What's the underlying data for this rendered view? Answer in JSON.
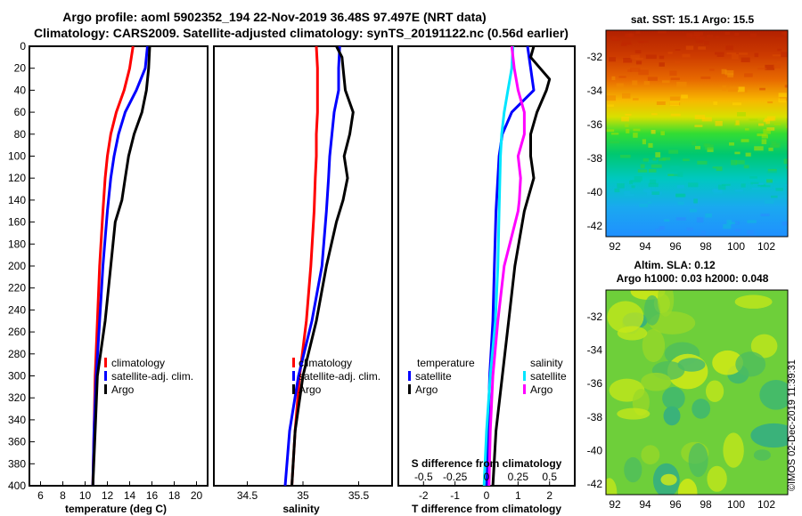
{
  "title": {
    "line1": "Argo profile: aoml 5902352_194 22-Nov-2019 36.48S 97.497E (NRT data)",
    "line2": "Climatology: CARS2009. Satellite-adjusted climatology: synTS_20191122.nc (0.56d earlier)"
  },
  "colors": {
    "climatology": "#ff0000",
    "satellite_adj": "#0000ff",
    "argo": "#000000",
    "sal_satellite": "#00e5ff",
    "sal_argo": "#ff00ff"
  },
  "chart_data": [
    {
      "type": "line",
      "id": "temperature",
      "xlabel": "temperature (deg C)",
      "ylabel": "",
      "xlim": [
        5,
        21
      ],
      "ylim": [
        400,
        0
      ],
      "xticks": [
        "6",
        "8",
        "10",
        "12",
        "14",
        "16",
        "18",
        "20"
      ],
      "yticks": [
        "0",
        "20",
        "40",
        "60",
        "80",
        "100",
        "120",
        "140",
        "160",
        "180",
        "200",
        "220",
        "240",
        "260",
        "280",
        "300",
        "320",
        "340",
        "360",
        "380",
        "400"
      ],
      "legend": [
        "climatology",
        "satellite-adj. clim.",
        "Argo"
      ],
      "series": [
        {
          "name": "climatology",
          "depth": [
            0,
            20,
            40,
            60,
            80,
            100,
            120,
            150,
            200,
            250,
            300,
            350,
            400
          ],
          "values": [
            14.3,
            14.0,
            13.5,
            12.8,
            12.3,
            12.0,
            11.8,
            11.6,
            11.3,
            11.1,
            10.9,
            10.8,
            10.7
          ]
        },
        {
          "name": "satellite-adj. clim.",
          "depth": [
            0,
            20,
            40,
            60,
            80,
            100,
            120,
            150,
            200,
            250,
            300,
            350,
            400
          ],
          "values": [
            15.6,
            15.4,
            14.6,
            13.6,
            13.0,
            12.6,
            12.3,
            12.0,
            11.6,
            11.3,
            11.0,
            10.8,
            10.7
          ]
        },
        {
          "name": "Argo",
          "depth": [
            0,
            20,
            40,
            60,
            80,
            100,
            120,
            140,
            160,
            200,
            250,
            300,
            350,
            400
          ],
          "values": [
            15.8,
            15.7,
            15.5,
            15.1,
            14.4,
            13.9,
            13.6,
            13.3,
            12.7,
            12.3,
            11.8,
            11.1,
            10.9,
            10.7
          ]
        }
      ]
    },
    {
      "type": "line",
      "id": "salinity",
      "xlabel": "salinity",
      "ylabel": "",
      "xlim": [
        34.2,
        35.8
      ],
      "ylim": [
        400,
        0
      ],
      "xticks": [
        "34.5",
        "35",
        "35.5"
      ],
      "legend": [
        "climatology",
        "satellite-adj. clim.",
        "Argo"
      ],
      "series": [
        {
          "name": "climatology",
          "depth": [
            0,
            20,
            40,
            60,
            80,
            100,
            120,
            150,
            200,
            250,
            300,
            350,
            400
          ],
          "values": [
            35.12,
            35.13,
            35.13,
            35.13,
            35.12,
            35.12,
            35.11,
            35.1,
            35.07,
            35.03,
            34.97,
            34.93,
            34.9
          ]
        },
        {
          "name": "satellite-adj. clim.",
          "depth": [
            0,
            20,
            40,
            60,
            80,
            100,
            120,
            150,
            200,
            250,
            300,
            350,
            400
          ],
          "values": [
            35.33,
            35.32,
            35.32,
            35.28,
            35.26,
            35.24,
            35.23,
            35.21,
            35.17,
            35.08,
            34.96,
            34.88,
            34.84
          ]
        },
        {
          "name": "Argo",
          "depth": [
            0,
            10,
            20,
            40,
            60,
            80,
            100,
            120,
            140,
            160,
            200,
            250,
            300,
            350,
            400
          ],
          "values": [
            35.3,
            35.35,
            35.36,
            35.38,
            35.45,
            35.42,
            35.37,
            35.4,
            35.36,
            35.3,
            35.21,
            35.12,
            35.0,
            34.93,
            34.9
          ]
        }
      ]
    },
    {
      "type": "line",
      "id": "difference",
      "xlabel": "T difference from climatology",
      "xlabel_top": "S difference from climatology",
      "xlim": [
        -2.8,
        2.8
      ],
      "ylim": [
        400,
        0
      ],
      "xticks": [
        "-2",
        "-1",
        "0",
        "1",
        "2"
      ],
      "xticks_top": [
        "-0.5",
        "-0.25",
        "0",
        "0.25",
        "0.5"
      ],
      "legend_temperature": {
        "title": "temperature",
        "items": [
          "satellite",
          "Argo"
        ]
      },
      "legend_salinity": {
        "title": "salinity",
        "items": [
          "satellite",
          "Argo"
        ]
      },
      "series": [
        {
          "name": "T satellite",
          "depth": [
            0,
            20,
            40,
            60,
            80,
            100,
            150,
            200,
            250,
            300,
            350,
            400
          ],
          "values": [
            1.3,
            1.4,
            1.5,
            0.8,
            0.5,
            0.4,
            0.3,
            0.25,
            0.2,
            0.1,
            0.05,
            0.0
          ]
        },
        {
          "name": "T Argo",
          "depth": [
            0,
            10,
            20,
            30,
            40,
            60,
            80,
            100,
            120,
            150,
            200,
            250,
            300,
            350,
            400
          ],
          "values": [
            1.5,
            1.4,
            1.7,
            2.0,
            1.9,
            1.6,
            1.4,
            1.4,
            1.5,
            1.2,
            0.9,
            0.7,
            0.5,
            0.3,
            0.2
          ]
        },
        {
          "name": "S satellite",
          "depth": [
            0,
            20,
            40,
            60,
            80,
            100,
            150,
            200,
            250,
            300,
            350,
            400
          ],
          "values": [
            0.21,
            0.2,
            0.17,
            0.14,
            0.12,
            0.11,
            0.1,
            0.09,
            0.07,
            0.03,
            0.0,
            -0.02
          ]
        },
        {
          "name": "S Argo",
          "depth": [
            0,
            20,
            40,
            60,
            80,
            100,
            120,
            140,
            150,
            200,
            250,
            300,
            350,
            400
          ],
          "values": [
            0.2,
            0.22,
            0.25,
            0.3,
            0.3,
            0.25,
            0.27,
            0.26,
            0.25,
            0.14,
            0.09,
            0.05,
            0.03,
            0.02
          ]
        }
      ]
    },
    {
      "type": "heatmap",
      "id": "sst-map",
      "title": "sat. SST: 15.1  Argo: 15.5",
      "xticks": [
        "92",
        "94",
        "96",
        "98",
        "100",
        "102"
      ],
      "yticks": [
        "-32",
        "-34",
        "-36",
        "-38",
        "-40",
        "-42"
      ]
    },
    {
      "type": "heatmap",
      "id": "sla-map",
      "title": "Altim. SLA: 0.12",
      "subtitle": "Argo h1000: 0.03 h2000: 0.048",
      "xticks": [
        "92",
        "94",
        "96",
        "98",
        "100",
        "102"
      ],
      "yticks": [
        "-32",
        "-34",
        "-36",
        "-38",
        "-40",
        "-42"
      ]
    }
  ],
  "stamp": "©IMOS 02-Dec-2019 11:39:31"
}
